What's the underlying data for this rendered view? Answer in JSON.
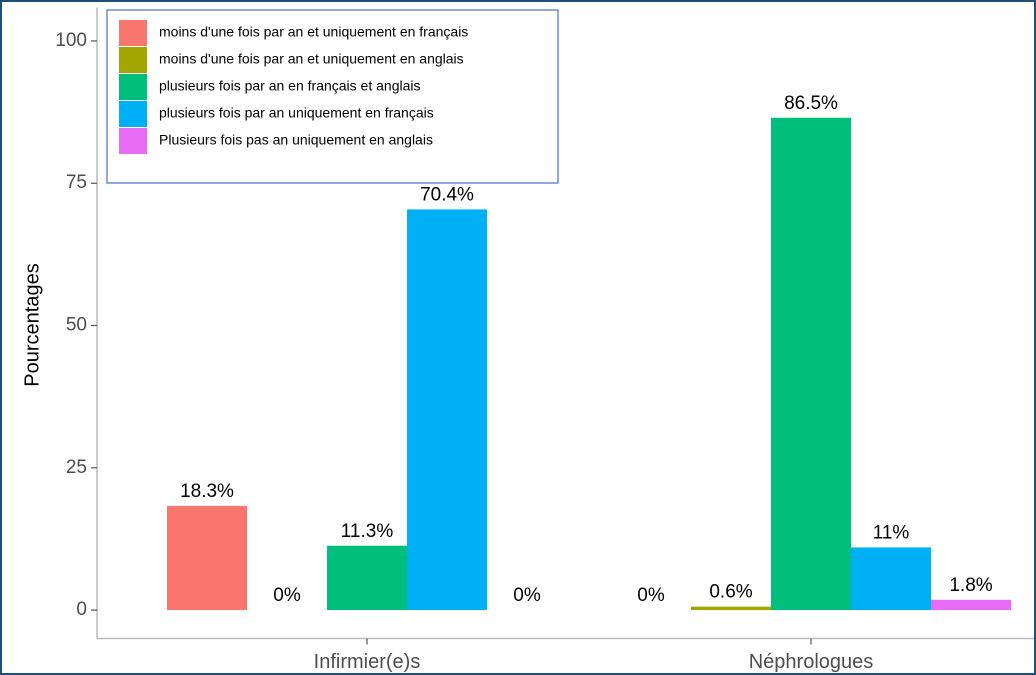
{
  "chart_data": {
    "type": "bar",
    "ylabel": "Pourcentages",
    "categories": [
      "Infirmier(e)s",
      "Néphrologues"
    ],
    "series": [
      {
        "name": "moins d'une fois par an et  uniquement en français",
        "color": "#F8766D",
        "values": [
          18.3,
          0
        ],
        "value_labels": [
          "18.3%",
          "0%"
        ]
      },
      {
        "name": "moins d'une fois par an et uniquement en anglais",
        "color": "#A3A500",
        "values": [
          0,
          0.6
        ],
        "value_labels": [
          "0%",
          "0.6%"
        ]
      },
      {
        "name": "plusieurs fois par an en français et anglais",
        "color": "#00BF7D",
        "values": [
          11.3,
          86.5
        ],
        "value_labels": [
          "11.3%",
          "86.5%"
        ]
      },
      {
        "name": "plusieurs fois par an uniquement en français",
        "color": "#00B0F6",
        "values": [
          70.4,
          11
        ],
        "value_labels": [
          "70.4%",
          "11%"
        ]
      },
      {
        "name": "Plusieurs fois pas an uniquement en anglais",
        "color": "#E76BF3",
        "values": [
          0,
          1.8
        ],
        "value_labels": [
          "0%",
          "1.8%"
        ]
      }
    ],
    "ylim": [
      -5,
      105
    ],
    "yticks": [
      0,
      25,
      50,
      75,
      100
    ],
    "grid": false,
    "legend": "top-left"
  }
}
